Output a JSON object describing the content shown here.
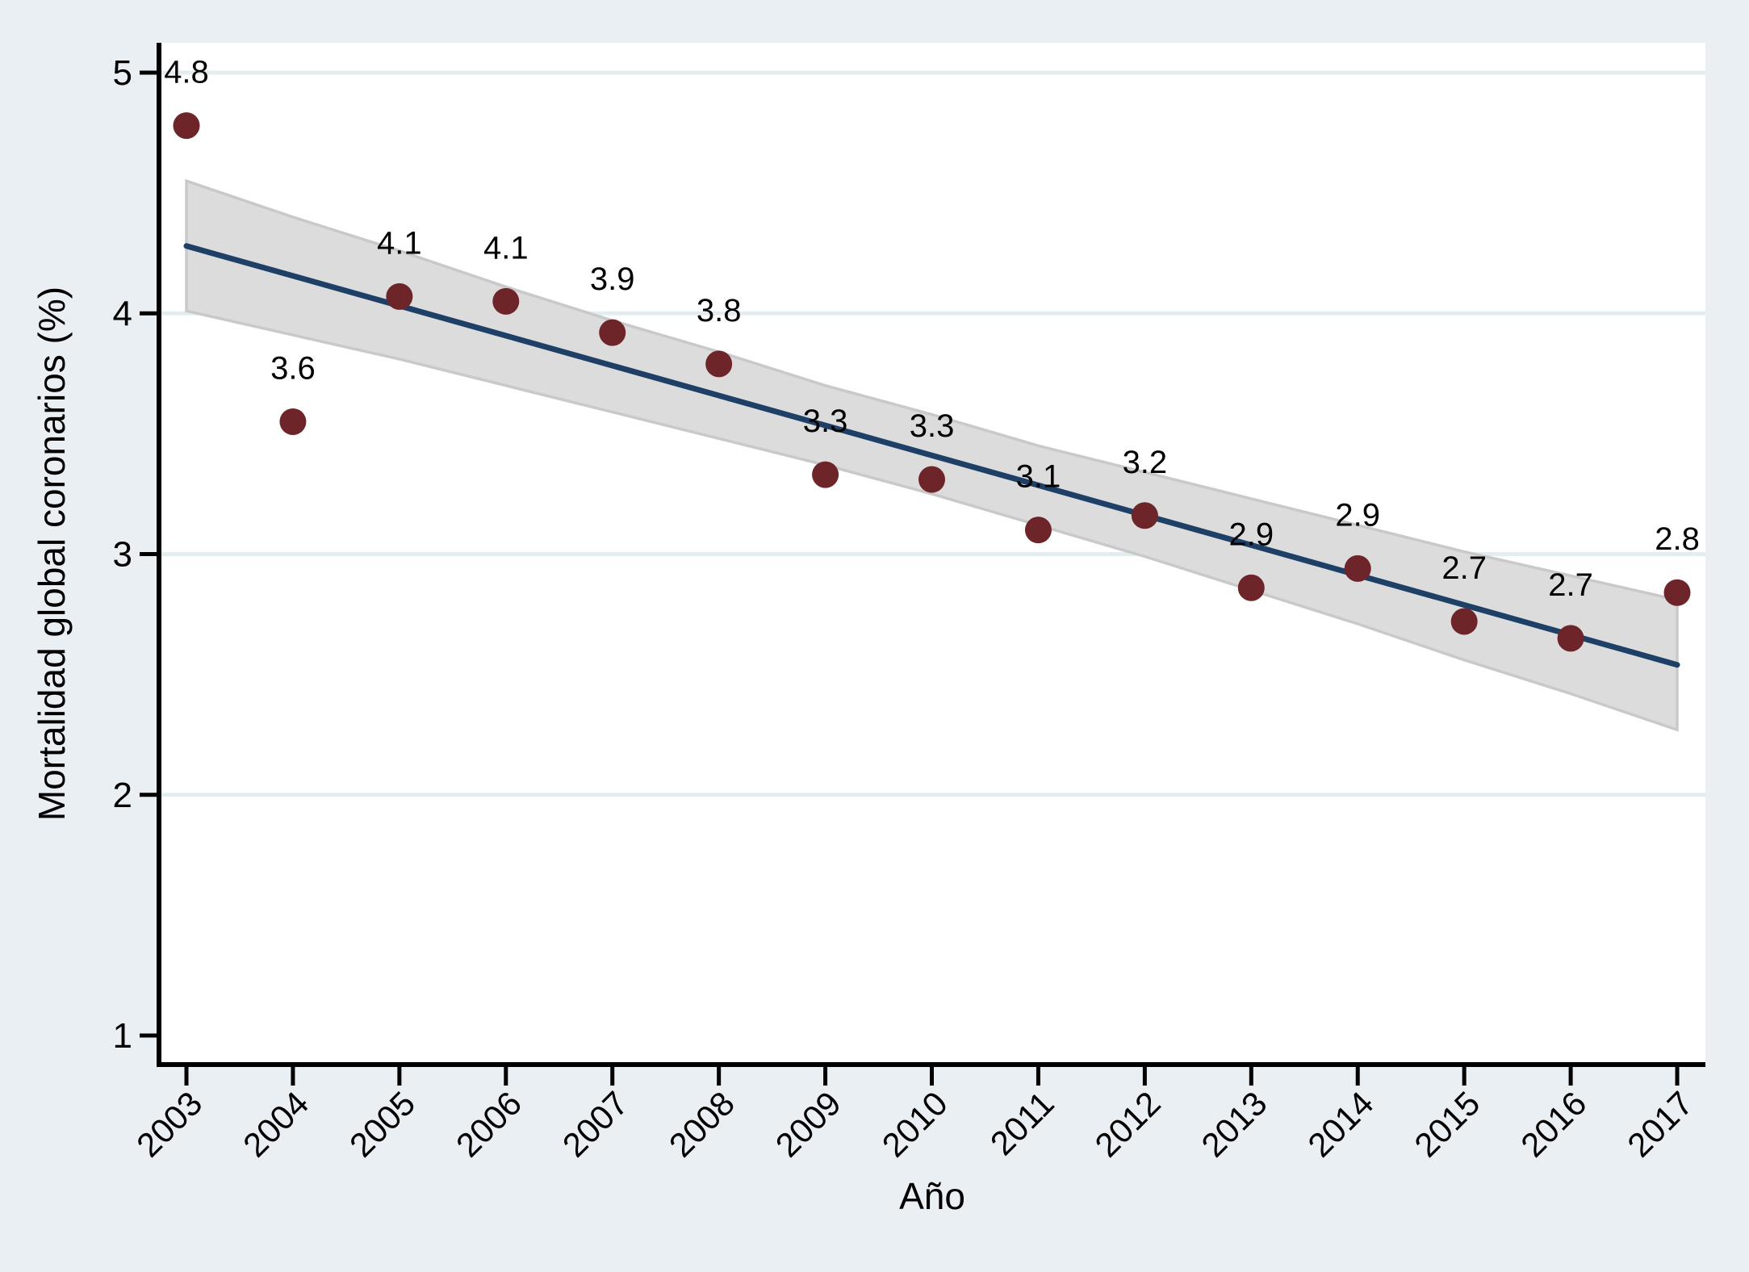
{
  "chart_data": {
    "type": "scatter",
    "title": "",
    "xlabel": "Año",
    "ylabel": "Mortalidad global coronarios (%)",
    "x_tick_labels": [
      "2003",
      "2004",
      "2005",
      "2006",
      "2007",
      "2008",
      "2009",
      "2010",
      "2011",
      "2012",
      "2013",
      "2014",
      "2015",
      "2016",
      "2017"
    ],
    "y_tick_labels": [
      "1",
      "2",
      "3",
      "4",
      "5"
    ],
    "y_ticks": [
      1,
      2,
      3,
      4,
      5
    ],
    "grid_y": [
      2,
      3,
      4,
      5
    ],
    "xlim": [
      2002.74,
      2017.27
    ],
    "ylim": [
      0.88,
      5.12
    ],
    "legend": "none",
    "series": [
      {
        "name": "scatter",
        "x": [
          2003,
          2004,
          2005,
          2006,
          2007,
          2008,
          2009,
          2010,
          2011,
          2012,
          2013,
          2014,
          2015,
          2016,
          2017
        ],
        "y": [
          4.78,
          3.55,
          4.07,
          4.05,
          3.92,
          3.79,
          3.33,
          3.31,
          3.1,
          3.16,
          2.86,
          2.94,
          2.72,
          2.65,
          2.84
        ],
        "point_labels": [
          "4.8",
          "3.6",
          "4.1",
          "4.1",
          "3.9",
          "3.8",
          "3.3",
          "3.3",
          "3.1",
          "3.2",
          "2.9",
          "2.9",
          "2.7",
          "2.7",
          "2.8"
        ]
      },
      {
        "name": "linear_fit",
        "x": [
          2003,
          2017
        ],
        "y": [
          4.28,
          2.54
        ]
      },
      {
        "name": "ci_band",
        "x": [
          2003,
          2004,
          2005,
          2006,
          2007,
          2008,
          2009,
          2010,
          2011,
          2012,
          2013,
          2014,
          2015,
          2016,
          2017
        ],
        "upper": [
          4.55,
          4.4,
          4.26,
          4.11,
          3.97,
          3.84,
          3.7,
          3.58,
          3.45,
          3.34,
          3.23,
          3.12,
          3.01,
          2.91,
          2.81
        ],
        "lower": [
          4.01,
          3.91,
          3.81,
          3.7,
          3.59,
          3.48,
          3.37,
          3.25,
          3.12,
          2.99,
          2.85,
          2.71,
          2.56,
          2.42,
          2.27
        ]
      }
    ],
    "colors": {
      "background": "#e9eff2",
      "plot_background": "#ffffff",
      "gridline": "#e3edef",
      "band_fill": "#dcdcdc",
      "band_edge": "#c9c9c9",
      "fit_line": "#1e3f66",
      "marker": "#6e2529",
      "axis": "#000000",
      "text": "#000000"
    }
  }
}
